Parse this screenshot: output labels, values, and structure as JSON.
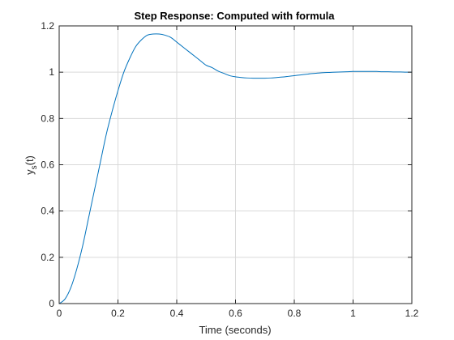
{
  "chart_data": {
    "type": "line",
    "title": "Step Response: Computed with formula",
    "xlabel": "Time (seconds)",
    "ylabel_main": "y",
    "ylabel_sub": "s",
    "ylabel_tail": "(t)",
    "xlim": [
      0,
      1.2
    ],
    "ylim": [
      0,
      1.2
    ],
    "xticks": [
      0,
      0.2,
      0.4,
      0.6,
      0.8,
      1,
      1.2
    ],
    "yticks": [
      0,
      0.2,
      0.4,
      0.6,
      0.8,
      1,
      1.2
    ],
    "xtick_labels": [
      "0",
      "0.2",
      "0.4",
      "0.6",
      "0.8",
      "1",
      "1.2"
    ],
    "ytick_labels": [
      "0",
      "0.2",
      "0.4",
      "0.6",
      "0.8",
      "1",
      "1.2"
    ],
    "grid": true,
    "series": [
      {
        "color": "#0072bd",
        "x": [
          0,
          0.02,
          0.04,
          0.06,
          0.08,
          0.1,
          0.12,
          0.14,
          0.16,
          0.18,
          0.2,
          0.22,
          0.24,
          0.26,
          0.28,
          0.3,
          0.32,
          0.34,
          0.36,
          0.38,
          0.4,
          0.42,
          0.44,
          0.46,
          0.48,
          0.5,
          0.52,
          0.54,
          0.56,
          0.58,
          0.6,
          0.62,
          0.64,
          0.66,
          0.68,
          0.7,
          0.72,
          0.74,
          0.76,
          0.78,
          0.8,
          0.82,
          0.84,
          0.86,
          0.88,
          0.9,
          0.92,
          0.94,
          0.96,
          0.98,
          1.0,
          1.02,
          1.04,
          1.06,
          1.08,
          1.1,
          1.12,
          1.14,
          1.16,
          1.18,
          1.2
        ],
        "y": [
          0,
          0.02,
          0.07,
          0.15,
          0.25,
          0.37,
          0.49,
          0.61,
          0.73,
          0.83,
          0.92,
          1.0,
          1.06,
          1.11,
          1.14,
          1.16,
          1.165,
          1.165,
          1.16,
          1.15,
          1.13,
          1.11,
          1.09,
          1.07,
          1.05,
          1.03,
          1.02,
          1.005,
          0.995,
          0.985,
          0.98,
          0.977,
          0.975,
          0.974,
          0.974,
          0.974,
          0.975,
          0.977,
          0.979,
          0.982,
          0.985,
          0.988,
          0.991,
          0.994,
          0.996,
          0.998,
          0.999,
          1.0,
          1.001,
          1.002,
          1.003,
          1.003,
          1.003,
          1.003,
          1.003,
          1.002,
          1.002,
          1.001,
          1.001,
          1.0,
          1.0
        ]
      }
    ]
  }
}
